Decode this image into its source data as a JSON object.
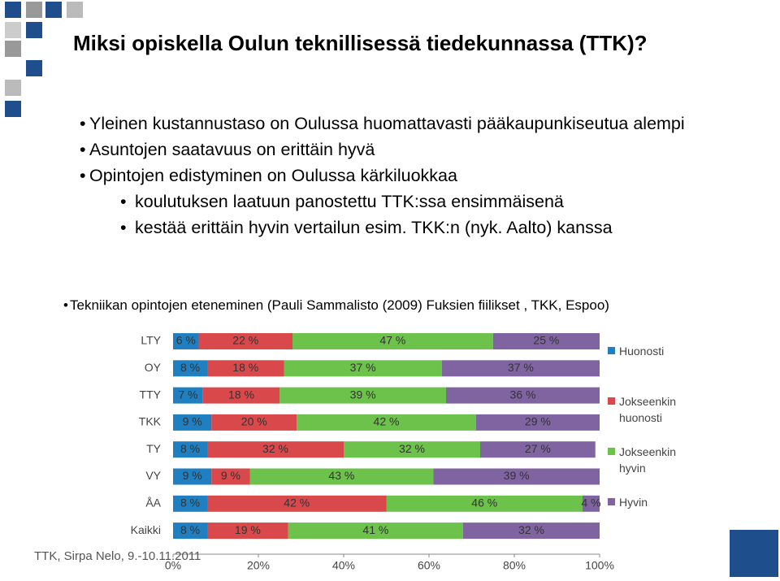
{
  "slide": {
    "title": "Miksi opiskella Oulun teknillisessä tiedekunnassa (TTK)?",
    "bullets": [
      {
        "text": "Yleinen kustannustaso on Oulussa huomattavasti pääkaupunkiseutua alempi",
        "level": 1
      },
      {
        "text": "Asuntojen saatavuus on erittäin hyvä",
        "level": 1
      },
      {
        "text": "Opintojen edistyminen on Oulussa kärkiluokkaa",
        "level": 1
      },
      {
        "text": "koulutuksen laatuun panostettu TTK:ssa ensimmäisenä",
        "level": 2
      },
      {
        "text": "kestää erittäin hyvin vertailun esim. TKK:n (nyk. Aalto) kanssa",
        "level": 2
      }
    ],
    "chart_caption": "Tekniikan opintojen eteneminen (Pauli Sammalisto (2009) Fuksien fiilikset , TKK, Espoo)",
    "footer": "TTK, Sirpa Nelo, 9.-10.11.2011"
  },
  "chart_data": {
    "type": "stacked-barh",
    "categories": [
      "LTY",
      "OY",
      "TTY",
      "TKK",
      "TY",
      "VY",
      "ÅA",
      "Kaikki"
    ],
    "series": [
      {
        "name": "Huonosti",
        "color": "#1f7fc0",
        "values": [
          6,
          8,
          7,
          9,
          8,
          9,
          8,
          8
        ],
        "value_labels": [
          "6 %",
          "8 %",
          "7 %",
          "9 %",
          "8 %",
          "9 %",
          "8 %",
          "8 %"
        ]
      },
      {
        "name": "Jokseenkin huonosti",
        "color": "#d9484b",
        "values": [
          22,
          18,
          18,
          20,
          32,
          9,
          42,
          19
        ],
        "value_labels": [
          "22 %",
          "18 %",
          "18 %",
          "20 %",
          "32 %",
          "9 %",
          "42 %",
          "19 %"
        ]
      },
      {
        "name": "Jokseenkin hyvin",
        "color": "#6cc24a",
        "values": [
          47,
          37,
          39,
          42,
          32,
          43,
          46,
          41
        ],
        "value_labels": [
          "47 %",
          "37 %",
          "39 %",
          "42 %",
          "32 %",
          "43 %",
          "46 %",
          "41 %"
        ]
      },
      {
        "name": "Hyvin",
        "color": "#8064a2",
        "values": [
          25,
          37,
          36,
          29,
          27,
          39,
          4,
          32
        ],
        "value_labels": [
          "25 %",
          "37 %",
          "36 %",
          "29 %",
          "27 %",
          "39 %",
          "4 %",
          "32 %"
        ]
      }
    ],
    "xlim": [
      0,
      100
    ],
    "xticks": [
      {
        "value": 0,
        "label": "0%"
      },
      {
        "value": 20,
        "label": "20%"
      },
      {
        "value": 40,
        "label": "40%"
      },
      {
        "value": 60,
        "label": "60%"
      },
      {
        "value": 80,
        "label": "80%"
      },
      {
        "value": 100,
        "label": "100%"
      }
    ]
  }
}
